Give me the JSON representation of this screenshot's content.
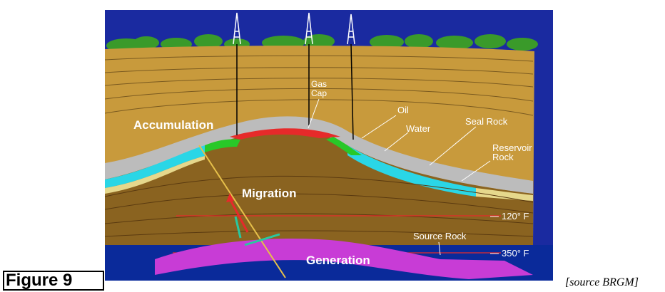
{
  "figure": {
    "label": "Figure 9",
    "source": "[source BRGM]"
  },
  "labels": {
    "gas_cap_line1": "Gas",
    "gas_cap_line2": "Cap",
    "oil": "Oil",
    "water": "Water",
    "seal_rock": "Seal Rock",
    "reservoir_line1": "Reservoir",
    "reservoir_line2": "Rock",
    "accumulation": "Accumulation",
    "migration": "Migration",
    "temp_120": "120° F",
    "temp_350": "350° F",
    "source_rock": "Source Rock",
    "generation": "Generation"
  },
  "colors": {
    "sky": "#1a2aa0",
    "deep": "#0a2a9a",
    "upper_rock": "#c89a3c",
    "lower_rock": "#8a6320",
    "seal": "#bcbcbc",
    "gas": "#e62a2a",
    "oil": "#28c828",
    "water": "#2ad6e6",
    "source_rock": "#c83cd6",
    "sand": "#e6d88c"
  }
}
